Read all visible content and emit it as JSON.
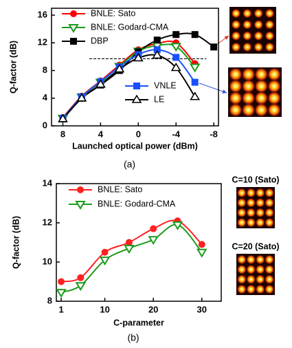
{
  "chart_data": [
    {
      "type": "line",
      "caption": "(a)",
      "xlabel": "Launched optical power (dBm)",
      "ylabel": "Q-factor (dB)",
      "x": [
        8,
        6,
        4,
        2,
        0,
        -2,
        -4,
        -6,
        -8
      ],
      "xlim": [
        9.2,
        -8.5
      ],
      "xticks": [
        8,
        4,
        0,
        -4,
        -8
      ],
      "ylim": [
        0,
        17
      ],
      "yticks": [
        0,
        4,
        8,
        12,
        16
      ],
      "hline": {
        "y": 9.7,
        "x": [
          5.2,
          -7.2
        ]
      },
      "series": [
        {
          "name": "BNLE: Sato",
          "color": "#ff0000",
          "marker": "circle",
          "values": [
            1.2,
            4.3,
            6.5,
            8.8,
            11.0,
            11.9,
            12.0,
            9.0,
            null
          ]
        },
        {
          "name": "BNLE: Godard-CMA",
          "color": "#1a9a1a",
          "marker": "triangle-down",
          "values": [
            1.1,
            4.2,
            6.3,
            8.6,
            10.8,
            11.6,
            11.5,
            8.5,
            null
          ]
        },
        {
          "name": "DBP",
          "color": "#000000",
          "marker": "square",
          "values": [
            1.0,
            4.0,
            5.9,
            8.0,
            10.7,
            12.4,
            13.2,
            13.2,
            11.4
          ]
        },
        {
          "name": "VNLE",
          "color": "#1a4fff",
          "marker": "square",
          "values": [
            1.1,
            4.2,
            6.4,
            8.5,
            10.3,
            11.0,
            9.9,
            6.3,
            null
          ]
        },
        {
          "name": "LE",
          "color": "#000000",
          "marker": "triangle-up",
          "values": [
            1.0,
            4.0,
            6.0,
            8.2,
            9.8,
            10.2,
            8.4,
            4.2,
            null
          ]
        }
      ]
    },
    {
      "type": "line",
      "caption": "(b)",
      "xlabel": "C-parameter",
      "ylabel": "Q-factor (dB)",
      "x": [
        1,
        5,
        10,
        15,
        20,
        25,
        30
      ],
      "xlim": [
        0,
        34
      ],
      "xticks": [
        1,
        10,
        20,
        30
      ],
      "ylim": [
        8,
        14
      ],
      "yticks": [
        8,
        10,
        12,
        14
      ],
      "image_labels": [
        "C=10 (Sato)",
        "C=20 (Sato)"
      ],
      "series": [
        {
          "name": "BNLE: Sato",
          "color": "#ff2020",
          "marker": "circle",
          "values": [
            9.0,
            9.2,
            10.5,
            11.0,
            11.7,
            12.1,
            10.9
          ]
        },
        {
          "name": "BNLE: Godard-CMA",
          "color": "#1a9a1a",
          "marker": "triangle-down",
          "values": [
            8.45,
            8.8,
            10.1,
            10.7,
            11.15,
            11.9,
            10.5
          ]
        }
      ]
    }
  ]
}
